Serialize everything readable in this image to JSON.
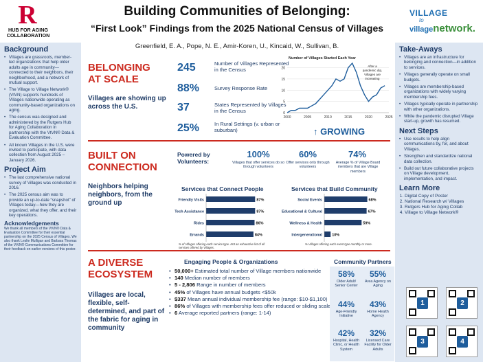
{
  "header": {
    "logo_letter": "R",
    "logo_hub": "HUB FOR AGING COLLABORATION",
    "title": "Building Communities of Belonging:",
    "subtitle": "“First Look” Findings from the 2025 National Census of Villages",
    "authors": "Greenfield, E. A., Pope, N. E., Amir-Koren, U., Kincaid, W., Sullivan, B.",
    "vvn_line1": "VILLAGE",
    "vvn_line2": "to",
    "vvn_line3": "village",
    "vvn_line4": "network."
  },
  "left": {
    "background_title": "Background",
    "background_bullets": [
      "Villages are grassroots, member-led organizations that help older adults age in community—connected to their neighbors, their neighborhood, and a network of mutual support.",
      "The Village to Village Network® (VtVN) supports hundreds of Villages nationwide operating as community-based organizations on aging.",
      "The census was designed and administered by the Rutgers Hub for Aging Collaboration in partnership with the VtVN® Data & Evaluation Committee.",
      "All known Villages in the U.S. were invited to participate, with data collection from August 2025 – January 2026."
    ],
    "aim_title": "Project Aim",
    "aim_bullets": [
      "The last comprehensive national survey of Villages was conducted in 2016.",
      "The 2025 census aim was to provide an up-to-date “snapshot” of Villages today—how they are organized, what they offer, and their key operations."
    ],
    "ack_title": "Acknowledgements",
    "ack_text": "We thank all members of the VtVN® Data & Evaluation Committee for their essential partnership on the 2025 Census of Villages. We also thank Leslie Mulligan and Barbara Thomas of the VtVN® Communications Committee for their feedback on earlier versions of this poster."
  },
  "right": {
    "takeaways_title": "Take-Aways",
    "takeaways": [
      "Villages are an infrastructure for belonging and connection—in addition to services.",
      "Villages generally operate on small budgets.",
      "Villages are membership-based organizations with widely varying membership fees.",
      "Villages typically operate in partnership with other organizations.",
      "While the pandemic disrupted Village start-up, growth has resumed."
    ],
    "next_title": "Next Steps",
    "next_steps": [
      "Use results to help align communications by, for, and about Villages.",
      "Strengthen and standardize national data collection.",
      "Build out future collaborative projects on Village development, implementation, and impact."
    ],
    "learn_title": "Learn More",
    "learn_items": [
      "Digital Copy of Poster",
      "National Research w/ Villages",
      "Rutgers Hub for Aging Collab",
      "Village to Village Network®"
    ],
    "qr_numbers": [
      "1",
      "2",
      "3",
      "4"
    ]
  },
  "belonging": {
    "title_line1": "BELONGING",
    "title_line2": "AT SCALE",
    "text": "Villages are showing up across the U.S.",
    "stats": [
      {
        "value": "245",
        "label": "Number of Villages Represented in the Census"
      },
      {
        "value": "88%",
        "label": "Survey Response Rate"
      },
      {
        "value": "37",
        "label": "States Represented by Villages in the Census"
      },
      {
        "value": "25%",
        "label": "In Rural Settings (v. urban or suburban)"
      }
    ],
    "growing": "↑ GROWING"
  },
  "connection": {
    "title_line1": "BUILT ON",
    "title_line2": "CONNECTION",
    "text": "Neighbors helping neighbors, from the ground up",
    "volunteers_title": "Powered by Volunteers:",
    "volunteers": [
      {
        "value": "100%",
        "label": "Villages that offer services do so through volunteers"
      },
      {
        "value": "60%",
        "label": "Offer services only through volunteers"
      },
      {
        "value": "74%",
        "label": "Average % of Village Board members that are Village members"
      }
    ],
    "footnote_people": "% of Villages offering each service type. Not an exhaustive list of all services offered by Villages.",
    "footnote_community": "% Villages offering each event type monthly or more."
  },
  "ecosystem": {
    "title_line1": "A DIVERSE",
    "title_line2": "ECOSYSTEM",
    "text": "Villages are local, flexible, self-determined, and part of the fabric for aging in community",
    "engaging_title": "Engaging People & Organizations",
    "engaging": [
      {
        "bold": "50,000+",
        "rest": " Estimated total number of Village members nationwide"
      },
      {
        "bold": "140",
        "rest": " Median number of members"
      },
      {
        "bold": "5 - 2,806",
        "rest": " Range in number of members"
      },
      {
        "bold": "45%",
        "rest": " of Villages have annual budgets <$50k"
      },
      {
        "bold": "$337",
        "rest": " Mean annual individual membership fee (range: $10-$1,100)"
      },
      {
        "bold": "86%",
        "rest": " of Villages with membership fees offer reduced or sliding scale"
      },
      {
        "bold": "6",
        "rest": " Average reported partners (range: 1-14)"
      }
    ],
    "partners_title": "Community Partners",
    "partners": [
      {
        "value": "58%",
        "label": "Older Adult/ Senior Center"
      },
      {
        "value": "55%",
        "label": "Area Agency on Aging"
      },
      {
        "value": "44%",
        "label": "Age-Friendly Initiative"
      },
      {
        "value": "43%",
        "label": "Home Health Agency"
      },
      {
        "value": "42%",
        "label": "Hospital, Health Clinic, or Health System"
      },
      {
        "value": "32%",
        "label": "Licensed Care Facility for Older Adults"
      }
    ]
  },
  "chart_data": [
    {
      "type": "line",
      "title": "Number of Villages Started Each Year",
      "x": [
        2000,
        2001,
        2002,
        2003,
        2004,
        2005,
        2006,
        2007,
        2008,
        2009,
        2010,
        2011,
        2012,
        2013,
        2014,
        2015,
        2016,
        2017,
        2018,
        2019,
        2020,
        2021,
        2022,
        2023,
        2024
      ],
      "series": [
        {
          "values": [
            0,
            1,
            1,
            2,
            2,
            2,
            3,
            4,
            6,
            8,
            10,
            12,
            15,
            14,
            15,
            20,
            22,
            18,
            12,
            8,
            5,
            7,
            8,
            11,
            12
          ]
        }
      ],
      "xticks": [
        2000,
        2005,
        2010,
        2015,
        2020,
        2025
      ],
      "yticks": [
        0,
        5,
        10,
        15,
        20
      ],
      "xlim": [
        2000,
        2025
      ],
      "ylim": [
        0,
        22
      ],
      "annotation": "After a pandemic dip, Villages are increasing",
      "color": "#1e5d9c"
    },
    {
      "type": "bar",
      "title": "Services that Connect People",
      "categories": [
        "Friendly Visits",
        "Tech Assistance",
        "Rides",
        "Errands"
      ],
      "values": [
        87,
        87,
        86,
        84
      ],
      "value_labels": [
        "87%",
        "87%",
        "86%",
        "84%"
      ],
      "xlim": [
        0,
        100
      ],
      "color": "#1f3d6b"
    },
    {
      "type": "bar",
      "title": "Services that Build Community",
      "categories": [
        "Social Events",
        "Educational & Cultural",
        "Wellness & Health",
        "Intergenerational"
      ],
      "values": [
        68,
        67,
        59,
        10
      ],
      "value_labels": [
        "68%",
        "67%",
        "59%",
        "10%"
      ],
      "xlim": [
        0,
        100
      ],
      "color": "#1f3d6b"
    }
  ]
}
